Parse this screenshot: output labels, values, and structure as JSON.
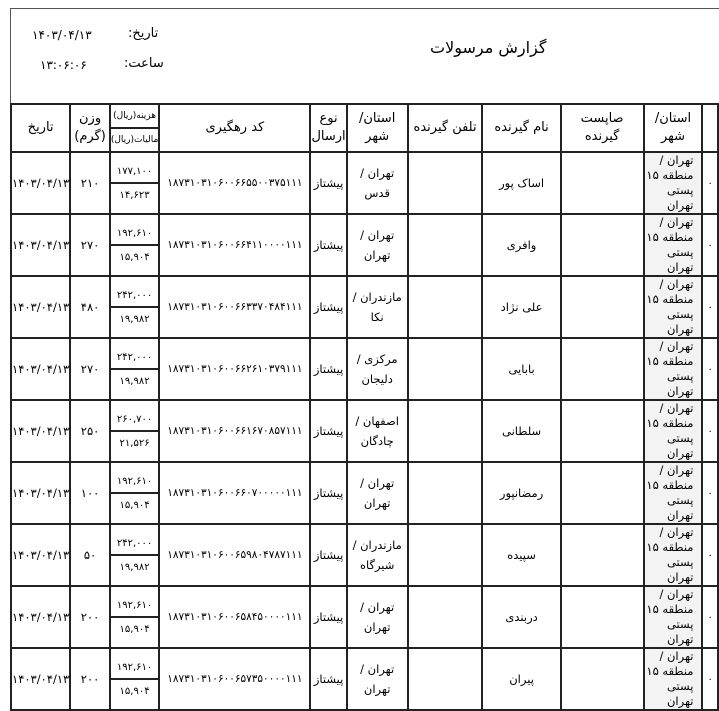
{
  "header": {
    "title": "گزارش مرسولات",
    "date_label": "تاریخ:",
    "date_value": "۱۴۰۳/۰۴/۱۳",
    "time_label": "ساعت:",
    "time_value": "۱۳:۰۶:۰۶"
  },
  "columns": {
    "origin": "استان/ شهر",
    "postal_code": "صاپست گیرنده",
    "receiver_name": "نام گیرنده",
    "receiver_phone": "تلفن گیرنده",
    "destination": "استان/ شهر",
    "send_type": "نوع ارسال",
    "tracking_code": "کد رهگیری",
    "cost": "هزینه(ریال)",
    "tax": "مالیات(ریال)",
    "weight": "وزن (گرم)",
    "date": "تاریخ"
  },
  "rows": [
    {
      "idx": "۰",
      "origin": "تهران / منطقه ۱۵ پستی تهران",
      "postal": "",
      "name": "اساک پور",
      "phone": "",
      "dest": "تهران / قدس",
      "type": "پیشتاز",
      "code": "۱۸۷۳۱۰۳۱۰۶۰۰۶۶۵۵۰۰۳۷۵۱۱۱",
      "cost": "۱۷۷,۱۰۰",
      "tax": "۱۴,۶۲۳",
      "weight": "۲۱۰",
      "date": "۱۴۰۳/۰۴/۱۳"
    },
    {
      "idx": "۰",
      "origin": "تهران / منطقه ۱۵ پستی تهران",
      "postal": "",
      "name": "وافری",
      "phone": "",
      "dest": "تهران / تهران",
      "type": "پیشتاز",
      "code": "۱۸۷۳۱۰۳۱۰۶۰۰۶۶۴۱۱۰۰۰۰۱۱۱",
      "cost": "۱۹۲,۶۱۰",
      "tax": "۱۵,۹۰۴",
      "weight": "۲۷۰",
      "date": "۱۴۰۳/۰۴/۱۳"
    },
    {
      "idx": "۰",
      "origin": "تهران / منطقه ۱۵ پستی تهران",
      "postal": "",
      "name": "علی نژاد",
      "phone": "",
      "dest": "مازندران / نکا",
      "type": "پیشتاز",
      "code": "۱۸۷۳۱۰۳۱۰۶۰۰۶۶۳۳۷۰۴۸۴۱۱۱",
      "cost": "۲۴۲,۰۰۰",
      "tax": "۱۹,۹۸۲",
      "weight": "۴۸۰",
      "date": "۱۴۰۳/۰۴/۱۳"
    },
    {
      "idx": "۰",
      "origin": "تهران / منطقه ۱۵ پستی تهران",
      "postal": "",
      "name": "بابایی",
      "phone": "",
      "dest": "مرکزی / دلیجان",
      "type": "پیشتاز",
      "code": "۱۸۷۳۱۰۳۱۰۶۰۰۶۶۲۶۱۰۳۷۹۱۱۱",
      "cost": "۲۴۲,۰۰۰",
      "tax": "۱۹,۹۸۲",
      "weight": "۲۷۰",
      "date": "۱۴۰۳/۰۴/۱۳"
    },
    {
      "idx": "۰",
      "origin": "تهران / منطقه ۱۵ پستی تهران",
      "postal": "",
      "name": "سلطانی",
      "phone": "",
      "dest": "اصفهان / چادگان",
      "type": "پیشتاز",
      "code": "۱۸۷۳۱۰۳۱۰۶۰۰۶۶۱۶۷۰۸۵۷۱۱۱",
      "cost": "۲۶۰,۷۰۰",
      "tax": "۲۱,۵۲۶",
      "weight": "۲۵۰",
      "date": "۱۴۰۳/۰۴/۱۳"
    },
    {
      "idx": "۰",
      "origin": "تهران / منطقه ۱۵ پستی تهران",
      "postal": "",
      "name": "رمضانپور",
      "phone": "",
      "dest": "تهران / تهران",
      "type": "پیشتاز",
      "code": "۱۸۷۳۱۰۳۱۰۶۰۰۶۶۰۷۰۰۰۰۰۱۱۱",
      "cost": "۱۹۲,۶۱۰",
      "tax": "۱۵,۹۰۴",
      "weight": "۱۰۰",
      "date": "۱۴۰۳/۰۴/۱۳"
    },
    {
      "idx": "۰",
      "origin": "تهران / منطقه ۱۵ پستی تهران",
      "postal": "",
      "name": "سپیده",
      "phone": "",
      "dest": "مازندران / شیرگاه",
      "type": "پیشتاز",
      "code": "۱۸۷۳۱۰۳۱۰۶۰۰۶۵۹۸۰۴۷۸۷۱۱۱",
      "cost": "۲۴۲,۰۰۰",
      "tax": "۱۹,۹۸۲",
      "weight": "۵۰",
      "date": "۱۴۰۳/۰۴/۱۳"
    },
    {
      "idx": "۰",
      "origin": "تهران / منطقه ۱۵ پستی تهران",
      "postal": "",
      "name": "دربندی",
      "phone": "",
      "dest": "تهران / تهران",
      "type": "پیشتاز",
      "code": "۱۸۷۳۱۰۳۱۰۶۰۰۶۵۸۴۵۰۰۰۰۱۱۱",
      "cost": "۱۹۲,۶۱۰",
      "tax": "۱۵,۹۰۴",
      "weight": "۲۰۰",
      "date": "۱۴۰۳/۰۴/۱۳"
    },
    {
      "idx": "۰",
      "origin": "تهران / منطقه ۱۵ پستی تهران",
      "postal": "",
      "name": "پیران",
      "phone": "",
      "dest": "تهران / تهران",
      "type": "پیشتاز",
      "code": "۱۸۷۳۱۰۳۱۰۶۰۰۶۵۷۳۵۰۰۰۰۱۱۱",
      "cost": "۱۹۲,۶۱۰",
      "tax": "۱۵,۹۰۴",
      "weight": "۲۰۰",
      "date": "۱۴۰۳/۰۴/۱۳"
    }
  ]
}
